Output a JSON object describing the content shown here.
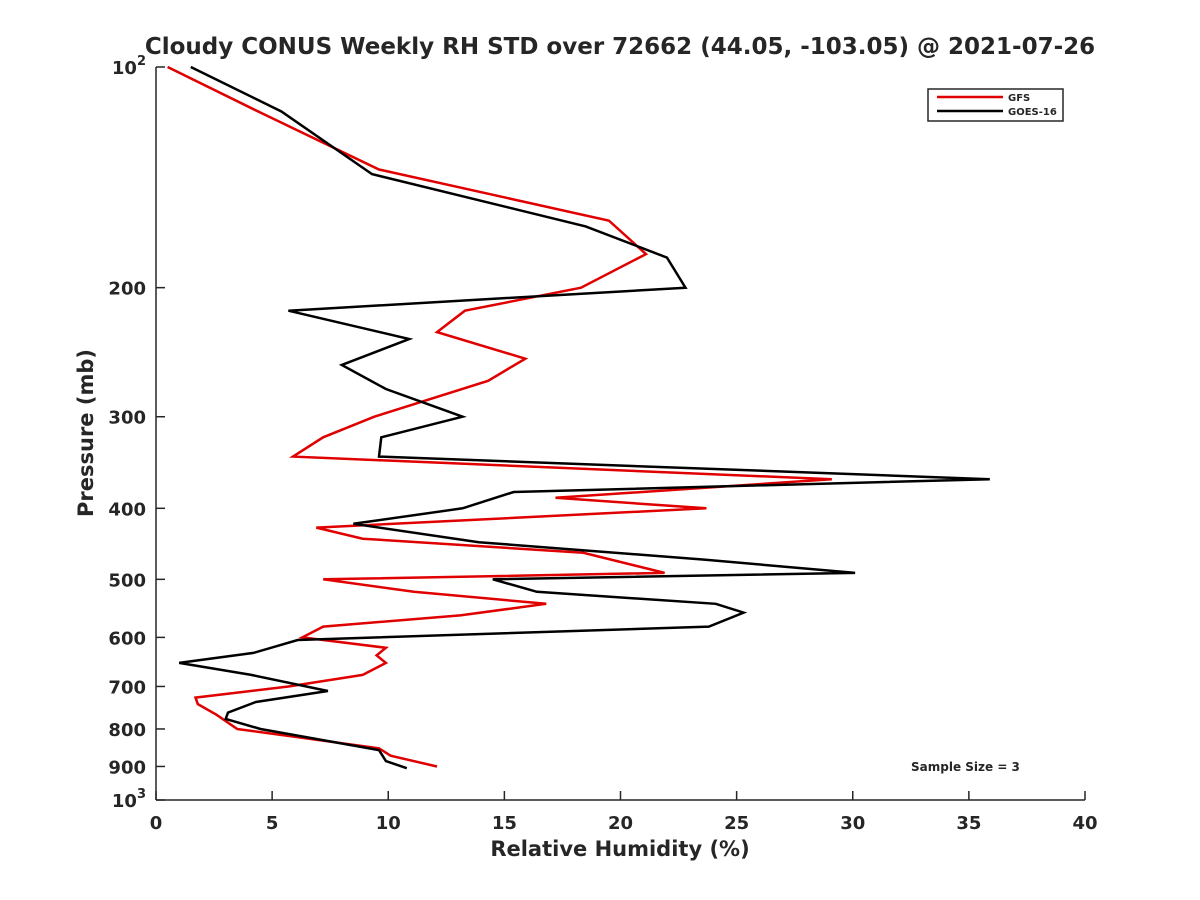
{
  "chart_data": {
    "type": "line",
    "title": "Cloudy CONUS Weekly RH STD over 72662 (44.05, -103.05) @ 2021-07-26",
    "xlabel": "Relative Humidity (%)",
    "ylabel": "Pressure (mb)",
    "xlim": [
      0,
      40
    ],
    "ylim": [
      100,
      1000
    ],
    "y_scale": "log",
    "y_reversed": true,
    "grid": false,
    "x_ticks": [
      "0",
      "5",
      "10",
      "15",
      "20",
      "25",
      "30",
      "35",
      "40"
    ],
    "y_ticks": [
      {
        "value": 100,
        "label": "10",
        "sup": "2"
      },
      {
        "value": 200,
        "label": "200",
        "sup": ""
      },
      {
        "value": 300,
        "label": "300",
        "sup": ""
      },
      {
        "value": 400,
        "label": "400",
        "sup": ""
      },
      {
        "value": 500,
        "label": "500",
        "sup": ""
      },
      {
        "value": 600,
        "label": "600",
        "sup": ""
      },
      {
        "value": 700,
        "label": "700",
        "sup": ""
      },
      {
        "value": 800,
        "label": "800",
        "sup": ""
      },
      {
        "value": 900,
        "label": "900",
        "sup": ""
      },
      {
        "value": 1000,
        "label": "10",
        "sup": "3"
      }
    ],
    "legend_position": "top-right",
    "series": [
      {
        "name": "GFS",
        "color": "#e00000",
        "points": [
          [
            0.5,
            100
          ],
          [
            4.4,
            115
          ],
          [
            9.6,
            138
          ],
          [
            19.5,
            162
          ],
          [
            21.1,
            180
          ],
          [
            18.3,
            200
          ],
          [
            13.3,
            215
          ],
          [
            12.1,
            230
          ],
          [
            15.9,
            250
          ],
          [
            14.3,
            268
          ],
          [
            9.4,
            300
          ],
          [
            7.2,
            320
          ],
          [
            5.9,
            340
          ],
          [
            29.1,
            365
          ],
          [
            17.2,
            387
          ],
          [
            23.7,
            400
          ],
          [
            6.9,
            425
          ],
          [
            8.9,
            440
          ],
          [
            18.4,
            460
          ],
          [
            21.9,
            490
          ],
          [
            7.2,
            500
          ],
          [
            11.1,
            520
          ],
          [
            16.8,
            540
          ],
          [
            13.1,
            560
          ],
          [
            7.2,
            580
          ],
          [
            6.3,
            600
          ],
          [
            9.9,
            620
          ],
          [
            9.5,
            635
          ],
          [
            9.9,
            650
          ],
          [
            8.9,
            675
          ],
          [
            5.7,
            700
          ],
          [
            1.7,
            725
          ],
          [
            1.8,
            740
          ],
          [
            2.6,
            765
          ],
          [
            3.5,
            800
          ],
          [
            9.6,
            850
          ],
          [
            10.1,
            870
          ],
          [
            12.1,
            900
          ]
        ]
      },
      {
        "name": "GOES-16",
        "color": "#000000",
        "points": [
          [
            1.5,
            100
          ],
          [
            5.4,
            115
          ],
          [
            9.3,
            140
          ],
          [
            18.5,
            165
          ],
          [
            22.0,
            182
          ],
          [
            22.8,
            200
          ],
          [
            5.7,
            215
          ],
          [
            10.9,
            235
          ],
          [
            8.0,
            255
          ],
          [
            9.9,
            275
          ],
          [
            13.2,
            300
          ],
          [
            9.7,
            320
          ],
          [
            9.6,
            340
          ],
          [
            35.9,
            365
          ],
          [
            15.4,
            380
          ],
          [
            13.2,
            400
          ],
          [
            8.5,
            420
          ],
          [
            13.9,
            445
          ],
          [
            23.6,
            470
          ],
          [
            30.1,
            490
          ],
          [
            14.5,
            500
          ],
          [
            16.4,
            520
          ],
          [
            24.1,
            540
          ],
          [
            25.3,
            555
          ],
          [
            23.8,
            580
          ],
          [
            6.1,
            605
          ],
          [
            4.2,
            630
          ],
          [
            1.0,
            650
          ],
          [
            4.1,
            675
          ],
          [
            7.4,
            710
          ],
          [
            4.3,
            735
          ],
          [
            3.1,
            760
          ],
          [
            3.0,
            775
          ],
          [
            4.5,
            800
          ],
          [
            9.6,
            855
          ],
          [
            9.9,
            885
          ],
          [
            10.8,
            905
          ]
        ]
      }
    ],
    "annotation": "Sample Size = 3"
  }
}
